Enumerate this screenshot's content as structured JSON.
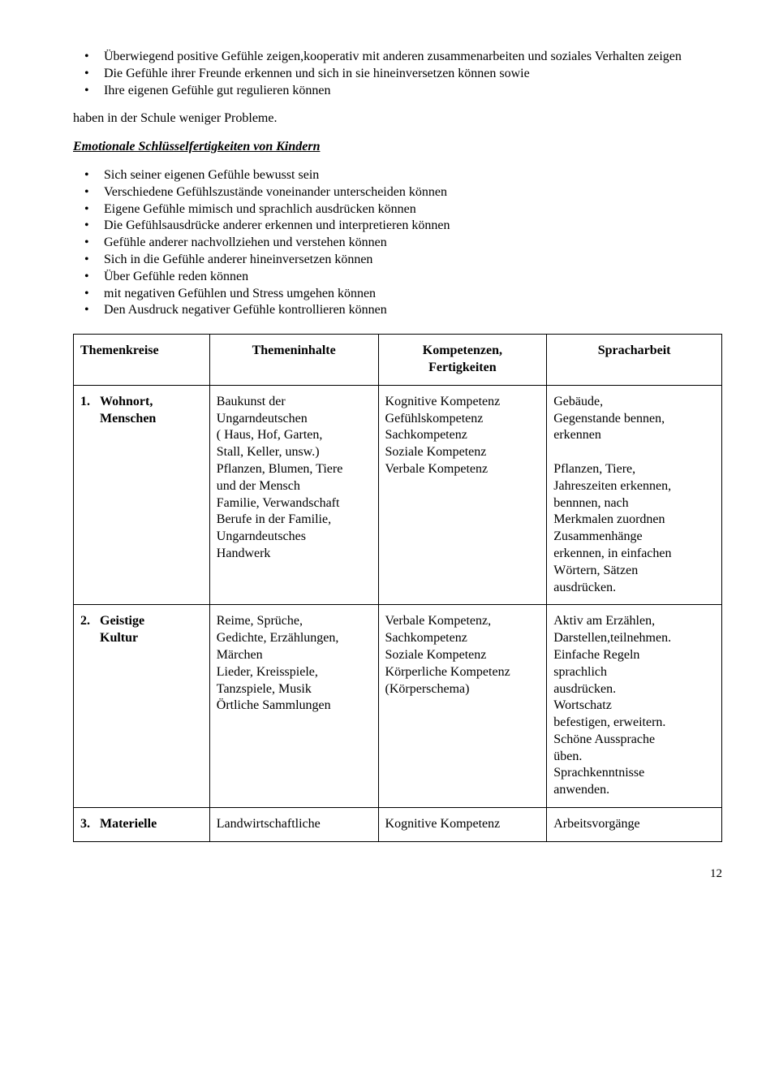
{
  "intro_bullets": [
    "Überwiegend positive Gefühle zeigen,kooperativ mit anderen zusammenarbeiten und soziales Verhalten zeigen",
    "Die Gefühle ihrer Freunde erkennen und sich in sie hineinversetzen können sowie",
    "Ihre eigenen Gefühle gut regulieren können"
  ],
  "intro_para": "haben in der Schule weniger Probleme.",
  "section_heading": "Emotionale Schlüsselfertigkeiten von Kindern",
  "skill_bullets": [
    "Sich seiner eigenen Gefühle bewusst sein",
    "Verschiedene Gefühlszustände voneinander unterscheiden können",
    "Eigene Gefühle mimisch und  sprachlich ausdrücken können",
    "Die Gefühlsausdrücke anderer erkennen und interpretieren können",
    "Gefühle anderer nachvollziehen und verstehen können",
    "Sich in die Gefühle anderer hineinversetzen können",
    "Über Gefühle reden können",
    "mit negativen Gefühlen und Stress umgehen können",
    "Den Ausdruck negativer Gefühle kontrollieren können"
  ],
  "table": {
    "headers": {
      "col1": "Themenkreise",
      "col2": "Themeninhalte",
      "col3": "Kompetenzen,\nFertigkeiten",
      "col4": "Spracharbeit"
    },
    "rows": [
      {
        "num": "1.",
        "name": "Wohnort,\nMenschen",
        "col2": "Baukunst der\nUngarndeutschen\n( Haus, Hof, Garten,\nStall, Keller, unsw.)\nPflanzen, Blumen, Tiere\nund der Mensch\nFamilie, Verwandschaft\nBerufe in der Familie,\nUngarndeutsches\nHandwerk",
        "col3": "Kognitive Kompetenz\nGefühlskompetenz\nSachkompetenz\nSoziale Kompetenz\nVerbale Kompetenz",
        "col4": "Gebäude,\nGegenstande bennen,\nerkennen\n\nPflanzen, Tiere,\nJahreszeiten erkennen,\nbennnen, nach\nMerkmalen zuordnen\nZusammenhänge\nerkennen, in einfachen\nWörtern, Sätzen\nausdrücken."
      },
      {
        "num": "2.",
        "name": "Geistige\nKultur",
        "col2": "Reime, Sprüche,\nGedichte, Erzählungen,\nMärchen\nLieder, Kreisspiele,\nTanzspiele, Musik\nÖrtliche Sammlungen",
        "col3": "Verbale Kompetenz,\nSachkompetenz\nSoziale Kompetenz\nKörperliche Kompetenz\n(Körperschema)",
        "col4": "Aktiv am Erzählen,\nDarstellen,teilnehmen.\nEinfache Regeln\nsprachlich\nausdrücken.\nWortschatz\nbefestigen, erweitern.\nSchöne Aussprache\nüben.\nSprachkenntnisse\nanwenden."
      },
      {
        "num": "3.",
        "name": "Materielle",
        "col2": "Landwirtschaftliche",
        "col3": "Kognitive Kompetenz",
        "col4": "Arbeitsvorgänge"
      }
    ]
  },
  "page_number": "12"
}
